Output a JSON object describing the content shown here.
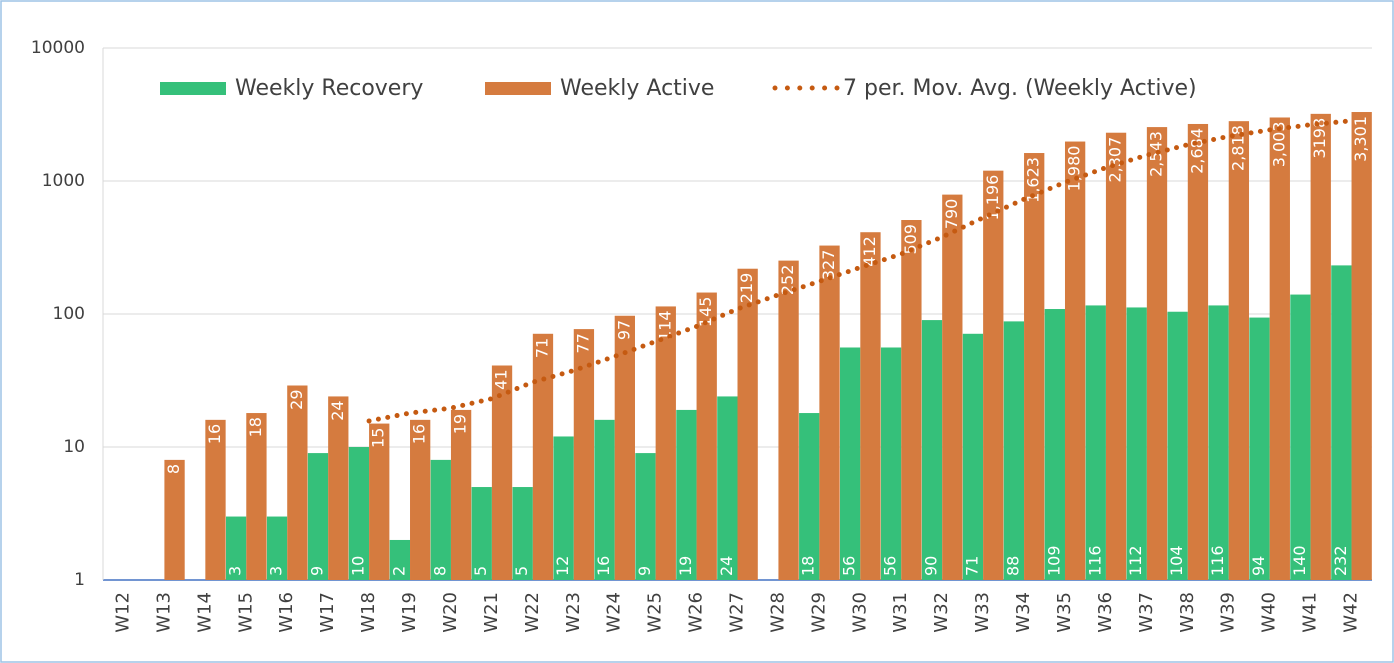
{
  "chart_data": {
    "type": "bar",
    "log_scale": true,
    "grid": true,
    "legend_position": "top",
    "categories": [
      "W12",
      "W13",
      "W14",
      "W15",
      "W16",
      "W17",
      "W18",
      "W19",
      "W20",
      "W21",
      "W22",
      "W23",
      "W24",
      "W25",
      "W26",
      "W27",
      "W28",
      "W29",
      "W30",
      "W31",
      "W32",
      "W33",
      "W34",
      "W35",
      "W36",
      "W37",
      "W38",
      "W39",
      "W40",
      "W41",
      "W42"
    ],
    "series": [
      {
        "name": "Weekly Recovery",
        "type": "bar",
        "color": "#35c07a",
        "values": [
          null,
          null,
          null,
          3,
          3,
          9,
          10,
          2,
          8,
          5,
          5,
          12,
          16,
          9,
          19,
          24,
          null,
          18,
          56,
          56,
          90,
          71,
          88,
          109,
          116,
          112,
          104,
          116,
          94,
          140,
          232
        ]
      },
      {
        "name": "Weekly Active",
        "type": "bar",
        "color": "#d57b3f",
        "values": [
          null,
          8,
          16,
          18,
          29,
          24,
          15,
          16,
          19,
          41,
          71,
          77,
          97,
          114,
          145,
          219,
          252,
          327,
          412,
          509,
          790,
          1196,
          1623,
          1980,
          2307,
          2543,
          2684,
          2818,
          3003,
          3198,
          3301
        ],
        "value_labels": [
          null,
          "8",
          "16",
          "18",
          "29",
          "24",
          "15",
          "16",
          "19",
          "41",
          "71",
          "77",
          "97",
          "114",
          "145",
          "219",
          "252",
          "327",
          "412",
          "509",
          "790",
          "1,196",
          "1,623",
          "1,980",
          "2,307",
          "2,543",
          "2,684",
          "2,818",
          "3,003",
          "3198",
          "3,301"
        ]
      },
      {
        "name": "7 per. Mov. Avg. (Weekly Active)",
        "type": "line",
        "color": "#c55a11",
        "values": [
          null,
          null,
          null,
          null,
          null,
          null,
          15.7,
          18.0,
          19.6,
          23.1,
          30.7,
          37.6,
          48.0,
          62.1,
          80.6,
          109.1,
          139.3,
          175.9,
          223.7,
          282.6,
          379.1,
          529.3,
          729.9,
          976.7,
          1259.6,
          1564.0,
          1874.7,
          2164.4,
          2422.6,
          2647.6,
          2836.3
        ]
      }
    ],
    "ylim": [
      1,
      10000
    ],
    "yticks": [
      1,
      10,
      100,
      1000,
      10000
    ]
  }
}
